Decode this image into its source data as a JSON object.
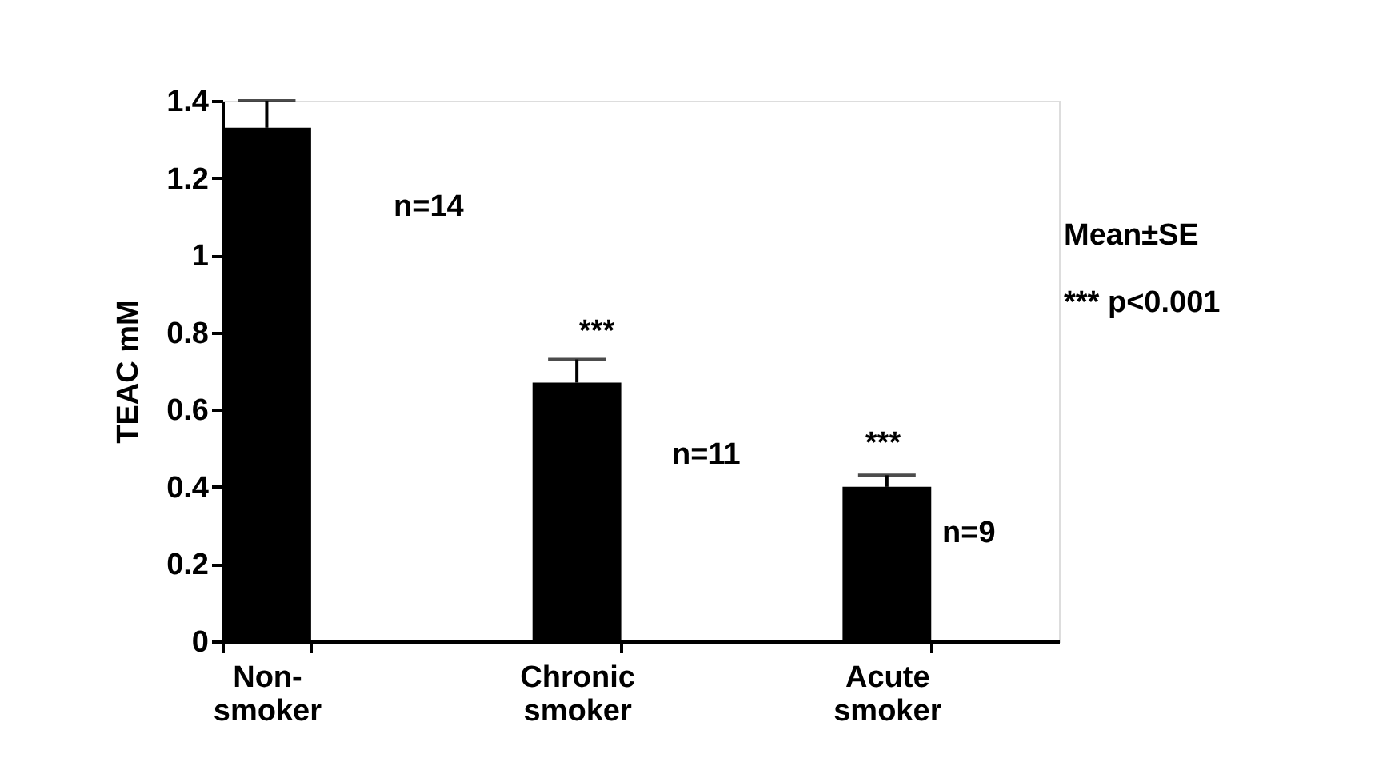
{
  "chart_data": {
    "type": "bar",
    "ylabel": "TEAC mM",
    "categories": [
      "Non-smoker",
      "Chronic smoker",
      "Acute smoker"
    ],
    "values": [
      1.33,
      0.67,
      0.4
    ],
    "errors": [
      0.07,
      0.06,
      0.03
    ],
    "color": "#000000",
    "ylim": [
      0,
      1.4
    ],
    "yticks": [
      {
        "value": 0,
        "label": "0"
      },
      0.2,
      0.4,
      0.6,
      0.8,
      {
        "value": 1,
        "label": "1"
      },
      1.2,
      1.4
    ],
    "grid": false,
    "annotations": [
      "n=14",
      "***",
      "n=11",
      "***",
      "n=9",
      "Mean±SE",
      "*** p<0.001"
    ]
  }
}
